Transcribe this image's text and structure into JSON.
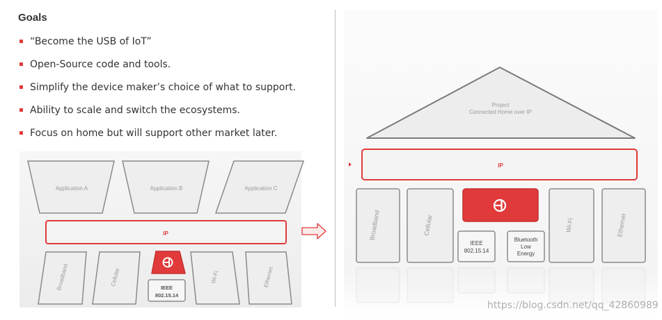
{
  "slide": {
    "title": "Goals",
    "bullets": [
      "“Become the USB of IoT”",
      "Open-Source code and tools.",
      "Simplify the device maker’s choice of what to support.",
      "Ability to scale and switch the ecosystems.",
      "Focus on home but will support other market later."
    ]
  },
  "left_diagram": {
    "applications": [
      "Application A",
      "Application B",
      "Application C"
    ],
    "ip_label": "IP",
    "transports": [
      "Broadband",
      "Cellular",
      "Wi-Fi",
      "Ethernet"
    ],
    "thread_box": [
      "IEEE",
      "802.15.14"
    ]
  },
  "right_diagram": {
    "roof": [
      "Project",
      "Connected Home over IP"
    ],
    "ip_label": "IP",
    "transports": [
      "Broadband",
      "Cellular",
      "Wi-Fi",
      "Ethernet"
    ],
    "thread_box": [
      "IEEE",
      "802.15.14"
    ],
    "ble_box": [
      "Bluetooth",
      "Low",
      "Energy"
    ]
  },
  "watermark": "https://blog.csdn.net/qq_42860989",
  "colors": {
    "accent": "#e03a3a",
    "box_fill": "#eeeeee",
    "box_stroke": "#8a8a8a",
    "text_gray": "#9a9a9a"
  }
}
